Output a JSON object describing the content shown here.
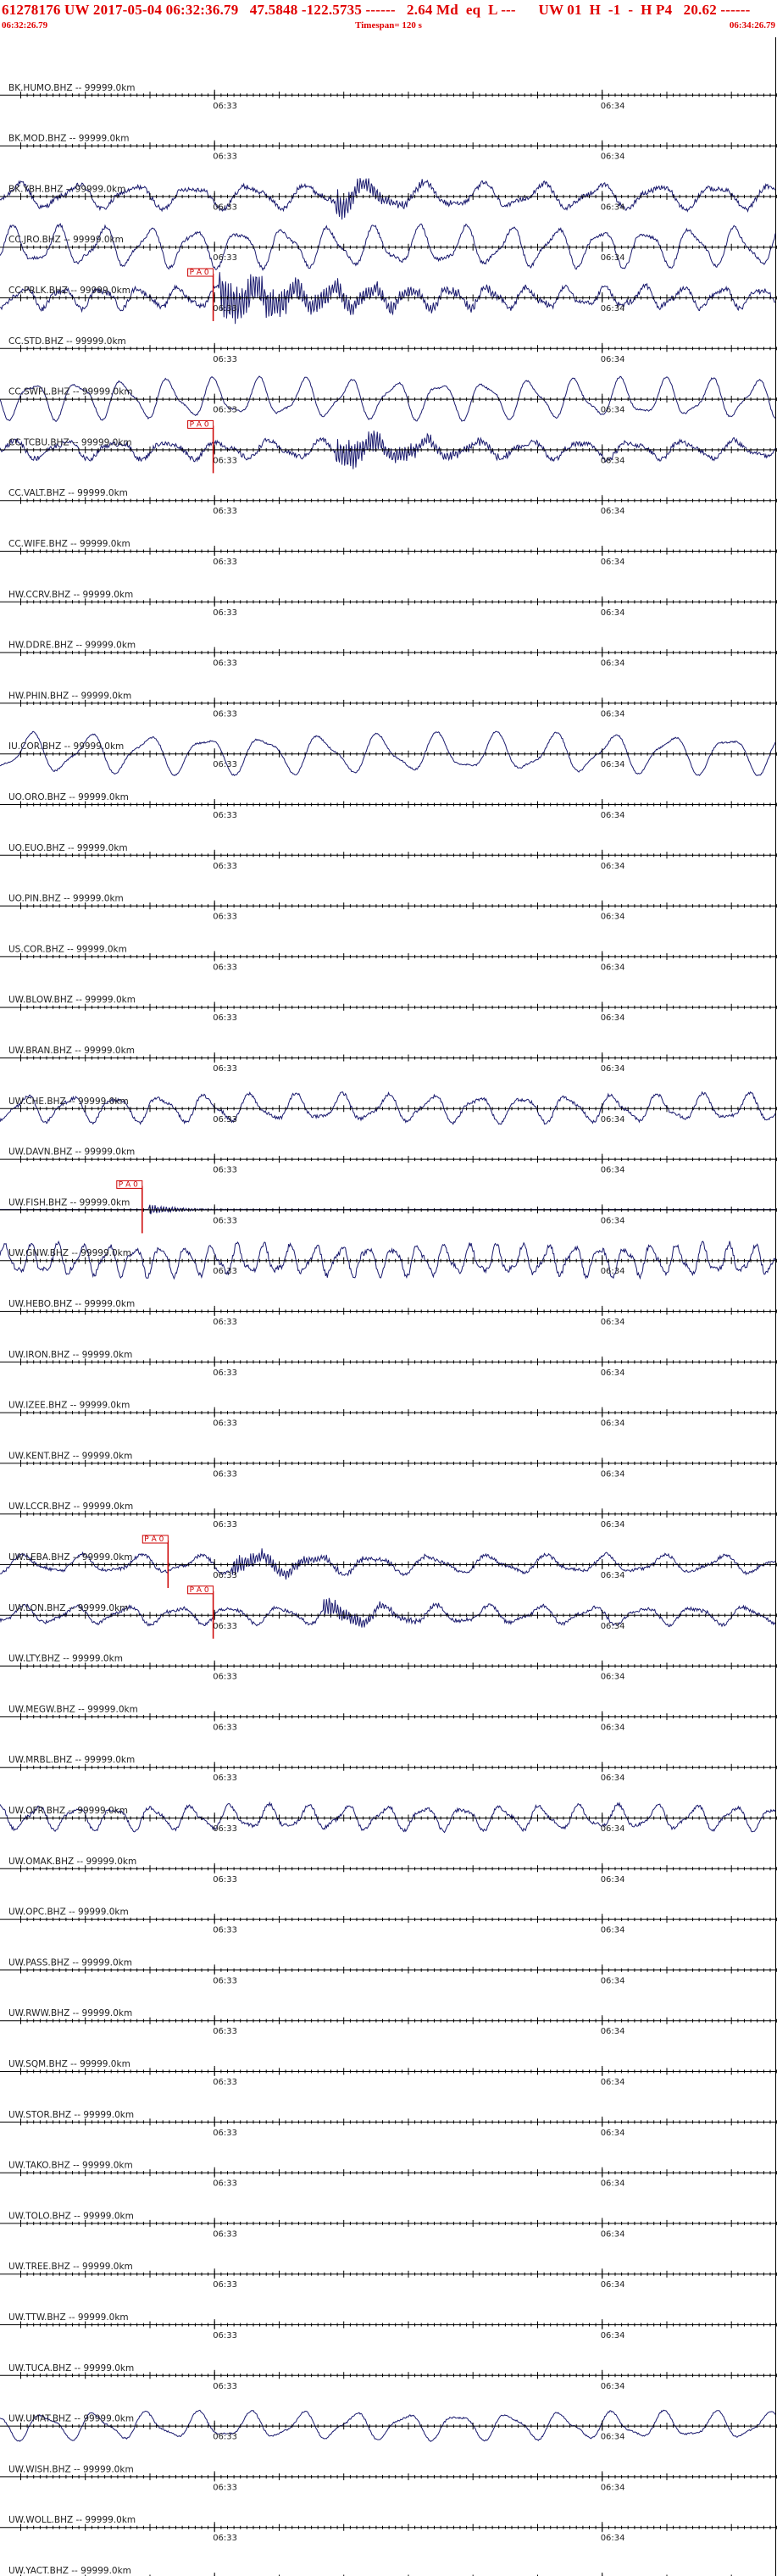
{
  "header": {
    "line1": "61278176 UW 2017-05-04 06:32:36.79   47.5848 -122.5735 ------   2.64 Md  eq  L ---      UW 01  H  -1  -  H P4   20.62 ------",
    "start_time": "06:32:26.79",
    "timespan": "Timespan= 120 s",
    "end_time": "06:34:26.79"
  },
  "colors": {
    "trace": "#1a1a6e",
    "pick": "#cc0000",
    "axis": "#000000",
    "header": "#e00000"
  },
  "chart_data": {
    "type": "line",
    "x_range_s": [
      0,
      120
    ],
    "tick_labels": [
      {
        "t": 33.21,
        "label": "06:33"
      },
      {
        "t": 93.21,
        "label": "06:34"
      }
    ],
    "traces": [
      {
        "label": "BK.HUMO.BHZ -- 99999.0km",
        "amp": 0,
        "period": 8,
        "noise": 0
      },
      {
        "label": "BK.MOD.BHZ -- 99999.0km",
        "amp": 0,
        "period": 8,
        "noise": 0
      },
      {
        "label": "BK.YBH.BHZ -- 99999.0km",
        "amp": 16,
        "period": 9,
        "noise": 3,
        "event": {
          "t": 52,
          "amp": 22,
          "dur": 6
        }
      },
      {
        "label": "CC.JRO.BHZ -- 99999.0km",
        "amp": 26,
        "period": 7,
        "noise": 2
      },
      {
        "label": "CC.PRLK.BHZ -- 99999.0km",
        "amp": 14,
        "period": 6,
        "noise": 3,
        "pick": {
          "t": 33,
          "label": "P A 0"
        },
        "event": {
          "t": 34,
          "amp": 28,
          "dur": 20
        }
      },
      {
        "label": "CC.STD.BHZ -- 99999.0km",
        "amp": 0,
        "period": 8,
        "noise": 0
      },
      {
        "label": "CC.SWFL.BHZ -- 99999.0km",
        "amp": 26,
        "period": 7,
        "noise": 1
      },
      {
        "label": "CC.TCBU.BHZ -- 99999.0km",
        "amp": 12,
        "period": 8,
        "noise": 3,
        "pick": {
          "t": 33,
          "label": "P A 0"
        },
        "event": {
          "t": 52,
          "amp": 22,
          "dur": 12
        }
      },
      {
        "label": "CC.VALT.BHZ -- 99999.0km",
        "amp": 0,
        "period": 8,
        "noise": 0
      },
      {
        "label": "CC.WIFE.BHZ -- 99999.0km",
        "amp": 0,
        "period": 8,
        "noise": 0
      },
      {
        "label": "HW.CCRV.BHZ -- 99999.0km",
        "amp": 0,
        "period": 8,
        "noise": 0
      },
      {
        "label": "HW.DDRE.BHZ -- 99999.0km",
        "amp": 0,
        "period": 8,
        "noise": 0
      },
      {
        "label": "HW.PHIN.BHZ -- 99999.0km",
        "amp": 0,
        "period": 8,
        "noise": 0
      },
      {
        "label": "IU.COR.BHZ -- 99999.0km",
        "amp": 26,
        "period": 9,
        "noise": 1
      },
      {
        "label": "UO.ORO.BHZ -- 99999.0km",
        "amp": 0,
        "period": 8,
        "noise": 0
      },
      {
        "label": "UO.EUO.BHZ -- 99999.0km",
        "amp": 0,
        "period": 8,
        "noise": 0
      },
      {
        "label": "UO.PIN.BHZ -- 99999.0km",
        "amp": 0,
        "period": 8,
        "noise": 0
      },
      {
        "label": "US.COR.BHZ -- 99999.0km",
        "amp": 0,
        "period": 8,
        "noise": 0
      },
      {
        "label": "UW.BLOW.BHZ -- 99999.0km",
        "amp": 0,
        "period": 8,
        "noise": 0
      },
      {
        "label": "UW.BRAN.BHZ -- 99999.0km",
        "amp": 0,
        "period": 8,
        "noise": 0
      },
      {
        "label": "UW.CHE.BHZ -- 99999.0km",
        "amp": 18,
        "period": 7,
        "noise": 2
      },
      {
        "label": "UW.DAVN.BHZ -- 99999.0km",
        "amp": 0,
        "period": 8,
        "noise": 0
      },
      {
        "label": "UW.FISH.BHZ -- 99999.0km",
        "amp": 0,
        "period": 8,
        "noise": 0,
        "flat": true,
        "pick": {
          "t": 22,
          "label": "P A 0"
        },
        "event": {
          "t": 23,
          "amp": 8,
          "dur": 4
        }
      },
      {
        "label": "UW.GNW.BHZ -- 99999.0km",
        "amp": 20,
        "period": 4,
        "noise": 3
      },
      {
        "label": "UW.HEBO.BHZ -- 99999.0km",
        "amp": 0,
        "period": 8,
        "noise": 0
      },
      {
        "label": "UW.IRON.BHZ -- 99999.0km",
        "amp": 0,
        "period": 8,
        "noise": 0
      },
      {
        "label": "UW.IZEE.BHZ -- 99999.0km",
        "amp": 0,
        "period": 8,
        "noise": 0
      },
      {
        "label": "UW.KENT.BHZ -- 99999.0km",
        "amp": 0,
        "period": 8,
        "noise": 0
      },
      {
        "label": "UW.LCCR.BHZ -- 99999.0km",
        "amp": 0,
        "period": 8,
        "noise": 0
      },
      {
        "label": "UW.LEBA.BHZ -- 99999.0km",
        "amp": 12,
        "period": 9,
        "noise": 2,
        "pick": {
          "t": 26,
          "label": "P A 0"
        },
        "event": {
          "t": 36,
          "amp": 12,
          "dur": 12
        }
      },
      {
        "label": "UW.LON.BHZ -- 99999.0km",
        "amp": 12,
        "period": 8,
        "noise": 2,
        "pick": {
          "t": 33,
          "label": "P A 0"
        },
        "event": {
          "t": 50,
          "amp": 14,
          "dur": 8
        }
      },
      {
        "label": "UW.LTY.BHZ -- 99999.0km",
        "amp": 0,
        "period": 8,
        "noise": 0
      },
      {
        "label": "UW.MEGW.BHZ -- 99999.0km",
        "amp": 0,
        "period": 8,
        "noise": 0
      },
      {
        "label": "UW.MRBL.BHZ -- 99999.0km",
        "amp": 0,
        "period": 8,
        "noise": 0
      },
      {
        "label": "UW.OFR.BHZ -- 99999.0km",
        "amp": 16,
        "period": 6,
        "noise": 2
      },
      {
        "label": "UW.OMAK.BHZ -- 99999.0km",
        "amp": 0,
        "period": 8,
        "noise": 0
      },
      {
        "label": "UW.OPC.BHZ -- 99999.0km",
        "amp": 0,
        "period": 8,
        "noise": 0
      },
      {
        "label": "UW.PASS.BHZ -- 99999.0km",
        "amp": 0,
        "period": 8,
        "noise": 0
      },
      {
        "label": "UW.RWW.BHZ -- 99999.0km",
        "amp": 0,
        "period": 8,
        "noise": 0
      },
      {
        "label": "UW.SQM.BHZ -- 99999.0km",
        "amp": 0,
        "period": 8,
        "noise": 0
      },
      {
        "label": "UW.STOR.BHZ -- 99999.0km",
        "amp": 0,
        "period": 8,
        "noise": 0
      },
      {
        "label": "UW.TAKO.BHZ -- 99999.0km",
        "amp": 0,
        "period": 8,
        "noise": 0
      },
      {
        "label": "UW.TOLO.BHZ -- 99999.0km",
        "amp": 0,
        "period": 8,
        "noise": 0
      },
      {
        "label": "UW.TREE.BHZ -- 99999.0km",
        "amp": 0,
        "period": 8,
        "noise": 0
      },
      {
        "label": "UW.TTW.BHZ -- 99999.0km",
        "amp": 0,
        "period": 8,
        "noise": 0
      },
      {
        "label": "UW.TUCA.BHZ -- 99999.0km",
        "amp": 0,
        "period": 8,
        "noise": 0
      },
      {
        "label": "UW.UMAT.BHZ -- 99999.0km",
        "amp": 18,
        "period": 8,
        "noise": 1
      },
      {
        "label": "UW.WISH.BHZ -- 99999.0km",
        "amp": 0,
        "period": 8,
        "noise": 0
      },
      {
        "label": "UW.WOLL.BHZ -- 99999.0km",
        "amp": 0,
        "period": 8,
        "noise": 0
      },
      {
        "label": "UW.YACT.BHZ -- 99999.0km",
        "amp": 0,
        "period": 8,
        "noise": 0
      }
    ]
  }
}
